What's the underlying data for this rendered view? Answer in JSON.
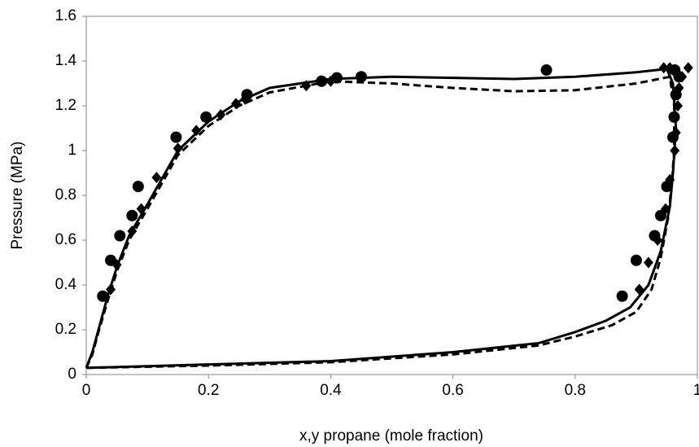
{
  "chart_data": {
    "type": "scatter",
    "x_label": "x,y propane (mole fraction)",
    "y_label": "Pressure (MPa)",
    "xlim": [
      0,
      1
    ],
    "xticks": [
      0,
      0.2,
      0.4,
      0.6,
      0.8,
      1
    ],
    "ylim": [
      0,
      1.6
    ],
    "yticks": [
      0,
      0.2,
      0.4,
      0.6,
      0.8,
      1,
      1.2,
      1.4,
      1.6
    ],
    "grid": false,
    "series": [
      {
        "color": "#000000",
        "marker": "circle",
        "x": [
          0.027,
          0.04,
          0.055,
          0.075,
          0.085,
          0.147,
          0.196,
          0.263,
          0.385,
          0.41,
          0.45,
          0.753,
          0.963,
          0.97,
          0.965,
          0.962,
          0.96,
          0.95,
          0.94,
          0.93,
          0.9,
          0.877
        ],
        "values": [
          0.35,
          0.51,
          0.62,
          0.71,
          0.84,
          1.06,
          1.15,
          1.25,
          1.31,
          1.325,
          1.33,
          1.36,
          1.36,
          1.33,
          1.25,
          1.15,
          1.06,
          0.84,
          0.71,
          0.62,
          0.51,
          0.35
        ]
      },
      {
        "color": "#000000",
        "marker": "diamond",
        "x": [
          0.04,
          0.05,
          0.075,
          0.09,
          0.115,
          0.15,
          0.18,
          0.22,
          0.245,
          0.26,
          0.36,
          0.4,
          0.945,
          0.955,
          0.985,
          0.975,
          0.97,
          0.968,
          0.965,
          0.963,
          0.955,
          0.948,
          0.935,
          0.92,
          0.905
        ],
        "values": [
          0.38,
          0.49,
          0.64,
          0.74,
          0.88,
          1.01,
          1.09,
          1.16,
          1.21,
          1.23,
          1.29,
          1.31,
          1.37,
          1.37,
          1.37,
          1.33,
          1.28,
          1.2,
          1.08,
          1.0,
          0.87,
          0.74,
          0.6,
          0.5,
          0.38
        ]
      },
      {
        "color": "#000000",
        "line": "solid",
        "x": [
          0,
          0.01,
          0.02,
          0.035,
          0.05,
          0.07,
          0.1,
          0.15,
          0.2,
          0.25,
          0.3,
          0.4,
          0.5,
          0.6,
          0.7,
          0.8,
          0.9,
          0.95,
          0.96,
          0.965,
          0.96,
          0.955,
          0.94,
          0.92,
          0.89,
          0.85,
          0.8,
          0.74,
          0.6,
          0.4,
          0.2,
          0
        ],
        "values": [
          0.03,
          0.1,
          0.2,
          0.35,
          0.48,
          0.62,
          0.76,
          1.0,
          1.13,
          1.22,
          1.28,
          1.32,
          1.33,
          1.325,
          1.32,
          1.33,
          1.35,
          1.365,
          1.3,
          1.1,
          0.9,
          0.75,
          0.55,
          0.4,
          0.3,
          0.24,
          0.19,
          0.14,
          0.1,
          0.06,
          0.045,
          0.03
        ]
      },
      {
        "color": "#000000",
        "line": "dashed",
        "x": [
          0,
          0.01,
          0.02,
          0.035,
          0.05,
          0.07,
          0.1,
          0.15,
          0.2,
          0.25,
          0.3,
          0.4,
          0.5,
          0.6,
          0.7,
          0.8,
          0.9,
          0.955,
          0.962,
          0.962,
          0.958,
          0.952,
          0.94,
          0.925,
          0.9,
          0.86,
          0.8,
          0.74,
          0.6,
          0.4,
          0.2,
          0
        ],
        "values": [
          0.03,
          0.09,
          0.19,
          0.33,
          0.46,
          0.6,
          0.74,
          0.98,
          1.11,
          1.2,
          1.26,
          1.31,
          1.3,
          1.28,
          1.265,
          1.27,
          1.3,
          1.33,
          1.2,
          1.0,
          0.85,
          0.7,
          0.52,
          0.38,
          0.28,
          0.22,
          0.17,
          0.13,
          0.09,
          0.055,
          0.04,
          0.03
        ]
      }
    ]
  }
}
